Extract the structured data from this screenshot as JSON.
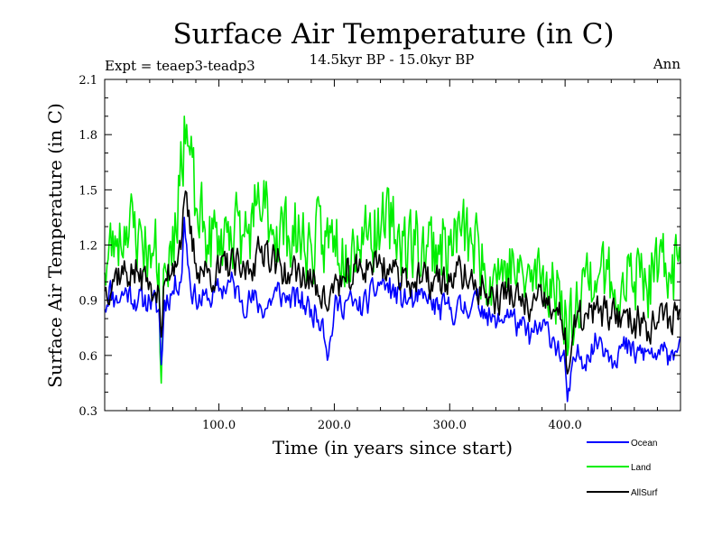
{
  "chart_data": {
    "type": "line",
    "title": "Surface Air Temperature (in C)",
    "subtitle": "14.5kyr BP - 15.0kyr BP",
    "expt_label": "Expt = teaep3-teadp3",
    "season_label": "Ann",
    "xlabel": "Time (in years since start)",
    "ylabel": "Surface Air Temperature (in C)",
    "xlim": [
      1,
      500
    ],
    "ylim": [
      0.3,
      2.1
    ],
    "xticks": [
      100,
      200,
      300,
      400
    ],
    "xtick_labels": [
      "100.0",
      "200.0",
      "300.0",
      "400.0"
    ],
    "yticks": [
      0.3,
      0.6,
      0.9,
      1.2,
      1.5,
      1.8,
      2.1
    ],
    "ytick_labels": [
      "0.3",
      "0.6",
      "0.9",
      "1.2",
      "1.5",
      "1.8",
      "2.1"
    ],
    "legend_position": "bottom-right",
    "series": [
      {
        "name": "Ocean",
        "color": "#0000ff",
        "anchors": [
          [
            1,
            0.85
          ],
          [
            5,
            0.97
          ],
          [
            10,
            0.9
          ],
          [
            20,
            0.95
          ],
          [
            30,
            0.9
          ],
          [
            40,
            0.9
          ],
          [
            48,
            0.85
          ],
          [
            50,
            0.55
          ],
          [
            53,
            0.9
          ],
          [
            60,
            0.95
          ],
          [
            68,
            1.05
          ],
          [
            70,
            1.35
          ],
          [
            75,
            1.0
          ],
          [
            80,
            0.9
          ],
          [
            90,
            0.9
          ],
          [
            100,
            0.95
          ],
          [
            110,
            1.0
          ],
          [
            120,
            0.9
          ],
          [
            130,
            0.9
          ],
          [
            140,
            0.85
          ],
          [
            150,
            0.95
          ],
          [
            160,
            0.9
          ],
          [
            170,
            0.9
          ],
          [
            180,
            0.85
          ],
          [
            190,
            0.8
          ],
          [
            195,
            0.6
          ],
          [
            200,
            0.85
          ],
          [
            210,
            0.9
          ],
          [
            220,
            0.85
          ],
          [
            230,
            0.9
          ],
          [
            240,
            1.0
          ],
          [
            250,
            0.95
          ],
          [
            260,
            0.9
          ],
          [
            270,
            0.9
          ],
          [
            280,
            0.9
          ],
          [
            290,
            0.85
          ],
          [
            300,
            0.85
          ],
          [
            310,
            0.85
          ],
          [
            320,
            0.9
          ],
          [
            330,
            0.85
          ],
          [
            340,
            0.75
          ],
          [
            350,
            0.85
          ],
          [
            360,
            0.75
          ],
          [
            370,
            0.7
          ],
          [
            380,
            0.75
          ],
          [
            390,
            0.7
          ],
          [
            400,
            0.55
          ],
          [
            402,
            0.35
          ],
          [
            410,
            0.6
          ],
          [
            420,
            0.6
          ],
          [
            430,
            0.7
          ],
          [
            440,
            0.6
          ],
          [
            450,
            0.65
          ],
          [
            460,
            0.6
          ],
          [
            470,
            0.62
          ],
          [
            480,
            0.6
          ],
          [
            490,
            0.6
          ],
          [
            500,
            0.7
          ]
        ],
        "noise": 0.07,
        "seed": 11
      },
      {
        "name": "Land",
        "color": "#00ee00",
        "anchors": [
          [
            1,
            1.05
          ],
          [
            10,
            1.25
          ],
          [
            20,
            1.3
          ],
          [
            30,
            1.25
          ],
          [
            40,
            1.2
          ],
          [
            48,
            1.1
          ],
          [
            50,
            0.45
          ],
          [
            53,
            1.1
          ],
          [
            60,
            1.3
          ],
          [
            68,
            1.6
          ],
          [
            70,
            1.9
          ],
          [
            80,
            1.4
          ],
          [
            90,
            1.2
          ],
          [
            100,
            1.25
          ],
          [
            110,
            1.3
          ],
          [
            120,
            1.25
          ],
          [
            130,
            1.3
          ],
          [
            140,
            1.4
          ],
          [
            150,
            1.3
          ],
          [
            160,
            1.25
          ],
          [
            170,
            1.25
          ],
          [
            180,
            1.2
          ],
          [
            190,
            1.2
          ],
          [
            200,
            1.25
          ],
          [
            210,
            1.2
          ],
          [
            220,
            1.25
          ],
          [
            230,
            1.3
          ],
          [
            240,
            1.25
          ],
          [
            250,
            1.3
          ],
          [
            260,
            1.25
          ],
          [
            270,
            1.2
          ],
          [
            280,
            1.2
          ],
          [
            290,
            1.2
          ],
          [
            300,
            1.2
          ],
          [
            310,
            1.25
          ],
          [
            320,
            1.2
          ],
          [
            330,
            1.1
          ],
          [
            340,
            1.05
          ],
          [
            350,
            1.1
          ],
          [
            360,
            1.05
          ],
          [
            370,
            1.0
          ],
          [
            380,
            1.05
          ],
          [
            390,
            1.0
          ],
          [
            400,
            0.9
          ],
          [
            402,
            0.6
          ],
          [
            410,
            1.0
          ],
          [
            420,
            1.0
          ],
          [
            430,
            1.05
          ],
          [
            440,
            1.0
          ],
          [
            450,
            1.05
          ],
          [
            460,
            1.0
          ],
          [
            470,
            1.0
          ],
          [
            480,
            1.0
          ],
          [
            490,
            1.05
          ],
          [
            500,
            1.1
          ]
        ],
        "noise": 0.2,
        "seed": 23
      },
      {
        "name": "AllSurf",
        "color": "#000000",
        "anchors": [
          [
            1,
            0.95
          ],
          [
            10,
            1.05
          ],
          [
            20,
            1.05
          ],
          [
            30,
            1.05
          ],
          [
            40,
            1.0
          ],
          [
            48,
            0.95
          ],
          [
            50,
            0.7
          ],
          [
            53,
            1.0
          ],
          [
            60,
            1.1
          ],
          [
            68,
            1.25
          ],
          [
            70,
            1.45
          ],
          [
            80,
            1.1
          ],
          [
            90,
            1.05
          ],
          [
            100,
            1.05
          ],
          [
            110,
            1.1
          ],
          [
            120,
            1.05
          ],
          [
            130,
            1.1
          ],
          [
            140,
            1.2
          ],
          [
            150,
            1.1
          ],
          [
            160,
            1.05
          ],
          [
            170,
            1.05
          ],
          [
            180,
            1.0
          ],
          [
            190,
            0.95
          ],
          [
            195,
            0.85
          ],
          [
            200,
            1.0
          ],
          [
            210,
            1.0
          ],
          [
            220,
            1.05
          ],
          [
            230,
            1.1
          ],
          [
            240,
            1.1
          ],
          [
            250,
            1.05
          ],
          [
            260,
            1.05
          ],
          [
            270,
            1.0
          ],
          [
            280,
            1.0
          ],
          [
            290,
            1.0
          ],
          [
            300,
            1.0
          ],
          [
            310,
            1.05
          ],
          [
            320,
            1.0
          ],
          [
            330,
            0.95
          ],
          [
            340,
            0.9
          ],
          [
            350,
            0.95
          ],
          [
            360,
            0.9
          ],
          [
            370,
            0.85
          ],
          [
            380,
            0.9
          ],
          [
            390,
            0.85
          ],
          [
            400,
            0.75
          ],
          [
            402,
            0.5
          ],
          [
            410,
            0.8
          ],
          [
            420,
            0.8
          ],
          [
            430,
            0.85
          ],
          [
            440,
            0.8
          ],
          [
            450,
            0.82
          ],
          [
            460,
            0.8
          ],
          [
            470,
            0.78
          ],
          [
            480,
            0.78
          ],
          [
            490,
            0.8
          ],
          [
            500,
            0.85
          ]
        ],
        "noise": 0.09,
        "seed": 37
      }
    ]
  }
}
